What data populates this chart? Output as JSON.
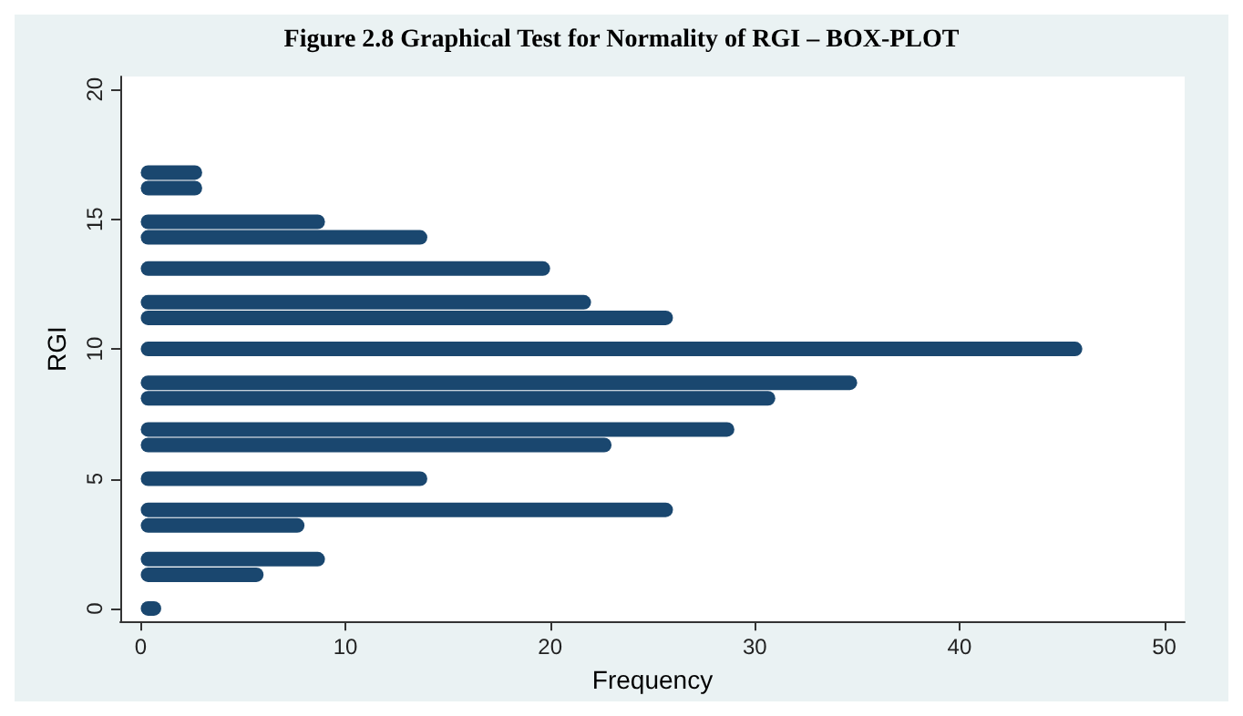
{
  "chart_data": {
    "type": "bar",
    "orientation": "horizontal",
    "title": "Figure 2.8 Graphical Test for Normality of RGI – BOX-PLOT",
    "xlabel": "Frequency",
    "ylabel": "RGI",
    "x": [
      0,
      1.3,
      1.9,
      3.2,
      3.8,
      5.0,
      6.3,
      6.9,
      8.1,
      8.7,
      10.0,
      11.2,
      11.8,
      13.1,
      14.3,
      14.9,
      16.2,
      16.8
    ],
    "values": [
      1,
      6,
      9,
      8,
      26,
      14,
      23,
      29,
      31,
      35,
      46,
      26,
      22,
      20,
      14,
      9,
      3,
      3
    ],
    "color": "#1a476f",
    "xlim": [
      -1,
      51
    ],
    "xticks": [
      0,
      10,
      20,
      30,
      40,
      50
    ],
    "ylim": [
      -0.5,
      20.5
    ],
    "yticks": [
      0,
      5,
      10,
      15,
      20
    ],
    "grid": false
  }
}
